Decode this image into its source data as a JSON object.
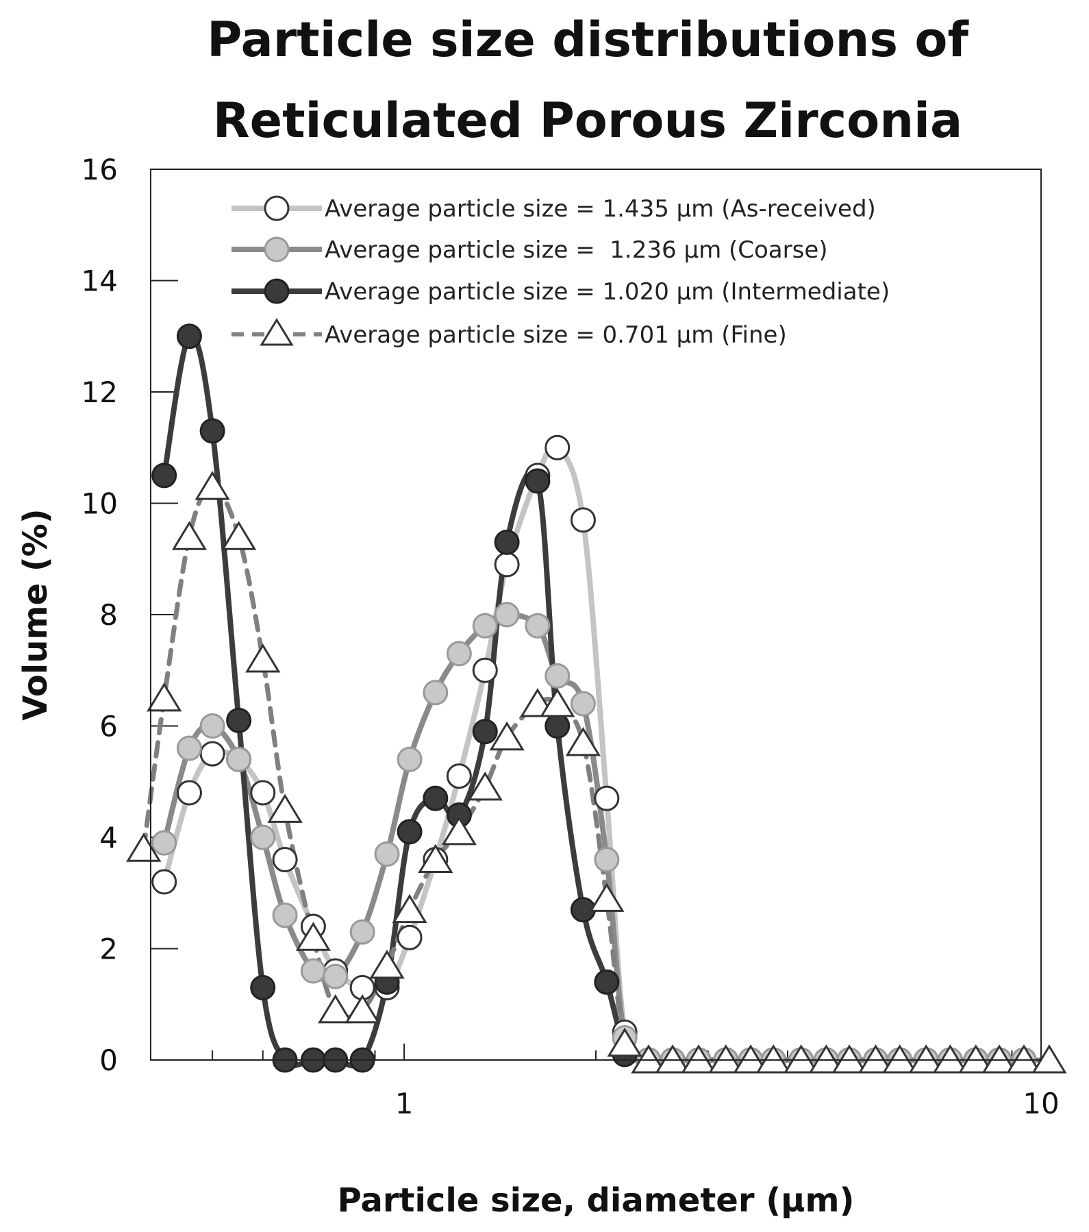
{
  "chart_data": {
    "type": "line",
    "title": [
      "Particle size distributions of",
      "Reticulated Porous Zirconia"
    ],
    "xlabel": "Particle size, diameter (µm)",
    "ylabel": "Volume (%)",
    "xscale": "log",
    "xlim": [
      0.4,
      10
    ],
    "ylim": [
      0,
      16
    ],
    "x_ticks": [
      {
        "value": 1,
        "label": "1"
      },
      {
        "value": 10,
        "label": "10"
      }
    ],
    "y_ticks": [
      0,
      2,
      4,
      6,
      8,
      10,
      12,
      14,
      16
    ],
    "legend_position": "top-right",
    "series": [
      {
        "name": "Average particle size = 1.435 µm (As-received)",
        "marker": "circle",
        "marker_fill": "#ffffff",
        "marker_stroke": "#333333",
        "line_color": "#c4c4c4",
        "line_style": "solid",
        "x": [
          0.42,
          0.46,
          0.5,
          0.55,
          0.6,
          0.65,
          0.72,
          0.78,
          0.86,
          0.94,
          1.02,
          1.12,
          1.22,
          1.34,
          1.45,
          1.62,
          1.74,
          1.91,
          2.08,
          2.22,
          2.42,
          2.64,
          2.9,
          3.2,
          3.5,
          3.8,
          4.2,
          4.6,
          5.0,
          5.5,
          6.0,
          6.6,
          7.2,
          7.9,
          8.6,
          9.4
        ],
        "y": [
          3.2,
          4.8,
          5.5,
          5.4,
          4.8,
          3.6,
          2.4,
          1.6,
          1.3,
          1.3,
          2.2,
          3.6,
          5.1,
          7.0,
          8.9,
          10.5,
          11.0,
          9.7,
          4.7,
          0.5,
          0,
          0,
          0,
          0,
          0,
          0,
          0,
          0,
          0,
          0,
          0,
          0,
          0,
          0,
          0,
          0
        ]
      },
      {
        "name": "Average particle size =  1.236 µm (Coarse)",
        "marker": "circle",
        "marker_fill": "#c8c8c8",
        "marker_stroke": "#999999",
        "line_color": "#8a8a8a",
        "line_style": "solid",
        "x": [
          0.42,
          0.46,
          0.5,
          0.55,
          0.6,
          0.65,
          0.72,
          0.78,
          0.86,
          0.94,
          1.02,
          1.12,
          1.22,
          1.34,
          1.45,
          1.62,
          1.74,
          1.91,
          2.08,
          2.22,
          2.42,
          2.64,
          2.9,
          3.2,
          3.5,
          3.8,
          4.2,
          4.6,
          5.0,
          5.5,
          6.0,
          6.6,
          7.2,
          7.9,
          8.6,
          9.4
        ],
        "y": [
          3.9,
          5.6,
          6.0,
          5.4,
          4.0,
          2.6,
          1.6,
          1.5,
          2.3,
          3.7,
          5.4,
          6.6,
          7.3,
          7.8,
          8.0,
          7.8,
          6.9,
          6.4,
          3.6,
          0.4,
          0,
          0,
          0,
          0,
          0,
          0,
          0,
          0,
          0,
          0,
          0,
          0,
          0,
          0,
          0,
          0
        ]
      },
      {
        "name": "Average particle size = 1.020 µm (Intermediate)",
        "marker": "circle",
        "marker_fill": "#3a3a3a",
        "marker_stroke": "#222222",
        "line_color": "#3c3c3c",
        "line_style": "solid",
        "x": [
          0.42,
          0.46,
          0.5,
          0.55,
          0.6,
          0.65,
          0.72,
          0.78,
          0.86,
          0.94,
          1.02,
          1.12,
          1.22,
          1.34,
          1.45,
          1.62,
          1.74,
          1.91,
          2.08,
          2.22
        ],
        "y": [
          10.5,
          13.0,
          11.3,
          6.1,
          1.3,
          0,
          0,
          0,
          0,
          1.4,
          4.1,
          4.7,
          4.4,
          5.9,
          9.3,
          10.4,
          6.0,
          2.7,
          1.4,
          0.1
        ]
      },
      {
        "name": "Average particle size = 0.701 µm (Fine)",
        "marker": "triangle",
        "marker_fill": "#ffffff",
        "marker_stroke": "#333333",
        "line_color": "#808080",
        "line_style": "dashed",
        "x": [
          0.39,
          0.42,
          0.46,
          0.5,
          0.55,
          0.6,
          0.65,
          0.72,
          0.78,
          0.86,
          0.94,
          1.02,
          1.12,
          1.22,
          1.34,
          1.45,
          1.62,
          1.74,
          1.91,
          2.08,
          2.22,
          2.42,
          2.64,
          2.9,
          3.2,
          3.5,
          3.8,
          4.2,
          4.6,
          5.0,
          5.5,
          6.0,
          6.6,
          7.2,
          7.9,
          8.6,
          9.4,
          10.3
        ],
        "y": [
          3.8,
          6.5,
          9.4,
          10.3,
          9.4,
          7.2,
          4.5,
          2.2,
          0.9,
          0.9,
          1.7,
          2.7,
          3.6,
          4.1,
          4.9,
          5.8,
          6.4,
          6.4,
          5.7,
          2.9,
          0.3,
          0,
          0,
          0,
          0,
          0,
          0,
          0,
          0,
          0,
          0,
          0,
          0,
          0,
          0,
          0,
          0,
          0
        ]
      }
    ]
  }
}
